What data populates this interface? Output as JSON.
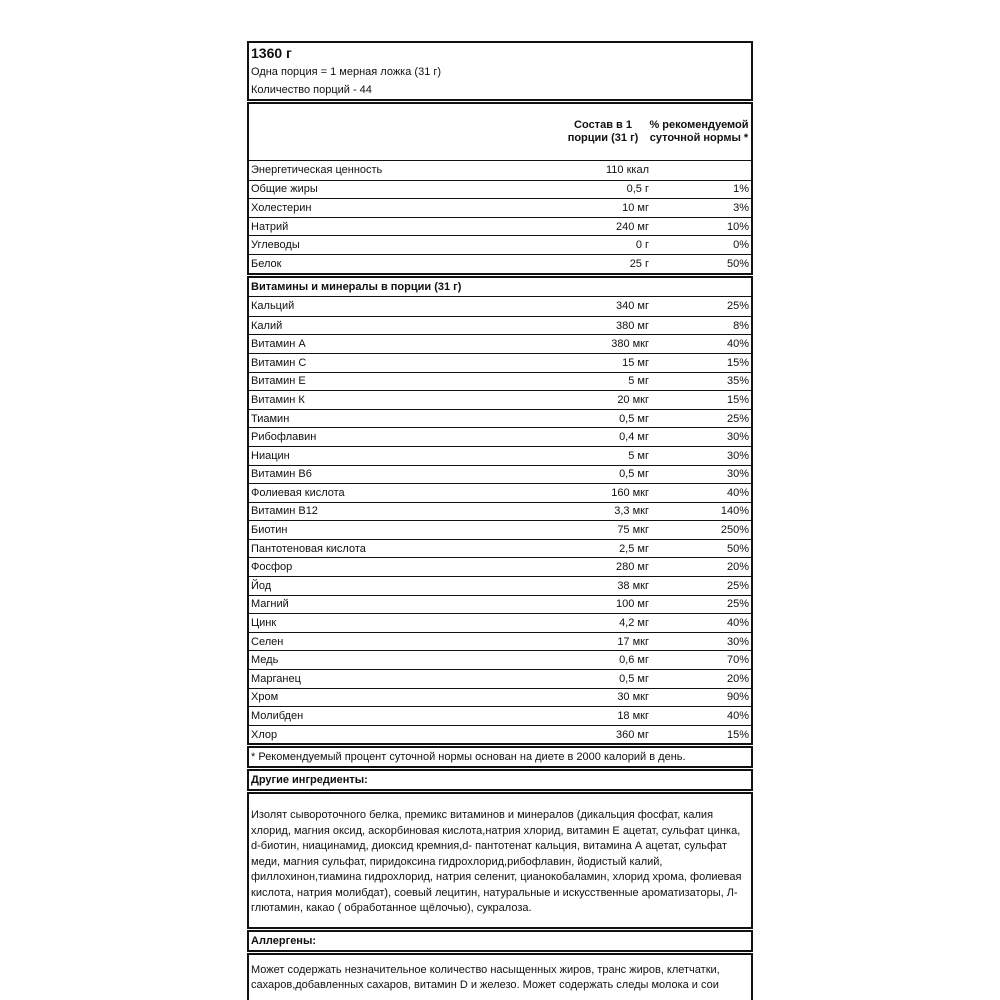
{
  "header": {
    "weight": "1360 г",
    "serving": "Одна порция = 1 мерная ложка (31 г)",
    "servings_count": "Количество порций - 44"
  },
  "columns": {
    "amount": "Состав в 1 порции (31 г)",
    "percent": "% рекомендуемой суточной нормы *"
  },
  "nutrients": [
    {
      "name": "Энергетическая ценность",
      "amount": "110 ккал",
      "percent": ""
    },
    {
      "name": "Общие жиры",
      "amount": "0,5 г",
      "percent": "1%"
    },
    {
      "name": "Холестерин",
      "amount": "10 мг",
      "percent": "3%"
    },
    {
      "name": "Натрий",
      "amount": "240 мг",
      "percent": "10%"
    },
    {
      "name": "Углеводы",
      "amount": "0 г",
      "percent": "0%"
    },
    {
      "name": "Белок",
      "amount": "25 г",
      "percent": "50%"
    }
  ],
  "vitamins_header": "Витамины и минералы в порции (31 г)",
  "vitamins": [
    {
      "name": "Кальций",
      "amount": "340 мг",
      "percent": "25%"
    },
    {
      "name": "Калий",
      "amount": "380 мг",
      "percent": "8%"
    },
    {
      "name": "Витамин А",
      "amount": "380 мкг",
      "percent": "40%"
    },
    {
      "name": "Витамин С",
      "amount": "15 мг",
      "percent": "15%"
    },
    {
      "name": "Витамин Е",
      "amount": "5 мг",
      "percent": "35%"
    },
    {
      "name": "Витамин К",
      "amount": "20 мкг",
      "percent": "15%"
    },
    {
      "name": "Тиамин",
      "amount": "0,5 мг",
      "percent": "25%"
    },
    {
      "name": "Рибофлавин",
      "amount": "0,4 мг",
      "percent": "30%"
    },
    {
      "name": "Ниацин",
      "amount": "5 мг",
      "percent": "30%"
    },
    {
      "name": "Витамин В6",
      "amount": "0,5 мг",
      "percent": "30%"
    },
    {
      "name": "Фолиевая кислота",
      "amount": "160 мкг",
      "percent": "40%"
    },
    {
      "name": "Витамин В12",
      "amount": "3,3 мкг",
      "percent": "140%"
    },
    {
      "name": "Биотин",
      "amount": "75 мкг",
      "percent": "250%"
    },
    {
      "name": "Пантотеновая кислота",
      "amount": "2,5 мг",
      "percent": "50%"
    },
    {
      "name": "Фосфор",
      "amount": "280 мг",
      "percent": "20%"
    },
    {
      "name": "Йод",
      "amount": "38 мкг",
      "percent": "25%"
    },
    {
      "name": "Магний",
      "amount": "100 мг",
      "percent": "25%"
    },
    {
      "name": "Цинк",
      "amount": "4,2 мг",
      "percent": "40%"
    },
    {
      "name": "Селен",
      "amount": "17 мкг",
      "percent": "30%"
    },
    {
      "name": "Медь",
      "amount": "0,6 мг",
      "percent": "70%"
    },
    {
      "name": "Марганец",
      "amount": "0,5 мг",
      "percent": "20%"
    },
    {
      "name": "Хром",
      "amount": "30 мкг",
      "percent": "90%"
    },
    {
      "name": "Молибден",
      "amount": "18 мкг",
      "percent": "40%"
    },
    {
      "name": "Хлор",
      "amount": "360 мг",
      "percent": "15%"
    }
  ],
  "footnote": "* Рекомендуемый процент суточной нормы основан на диете в 2000 калорий в день.",
  "ingredients": {
    "title": "Другие ингредиенты:",
    "text": "Изолят сывороточного белка, премикс витаминов и минералов (дикальция фосфат, калия хлорид, магния оксид, аскорбиновая кислота,натрия хлорид, витамин Е ацетат, сульфат цинка, d-биотин, ниацинамид, диоксид кремния,d- пантотенат кальция, витамина А ацетат, сульфат меди, магния сульфат, пиридоксина гидрохлорид,рибофлавин, йодистый калий, филлохинон,тиамина гидрохлорид, натрия селенит, цианокобаламин, хлорид хрома, фолиевая кислота, натрия молибдат), соевый лецитин, натуральные и искусственные ароматизаторы, Л-глютамин, какао ( обработанное щёлочью), сукралоза."
  },
  "allergens": {
    "title": "Аллергены:",
    "text": "Может содержать незначительное количество насыщенных жиров, транс жиров, клетчатки, сахаров,добавленных сахаров, витамин D и железо. Может содержать следы молока и сои"
  }
}
